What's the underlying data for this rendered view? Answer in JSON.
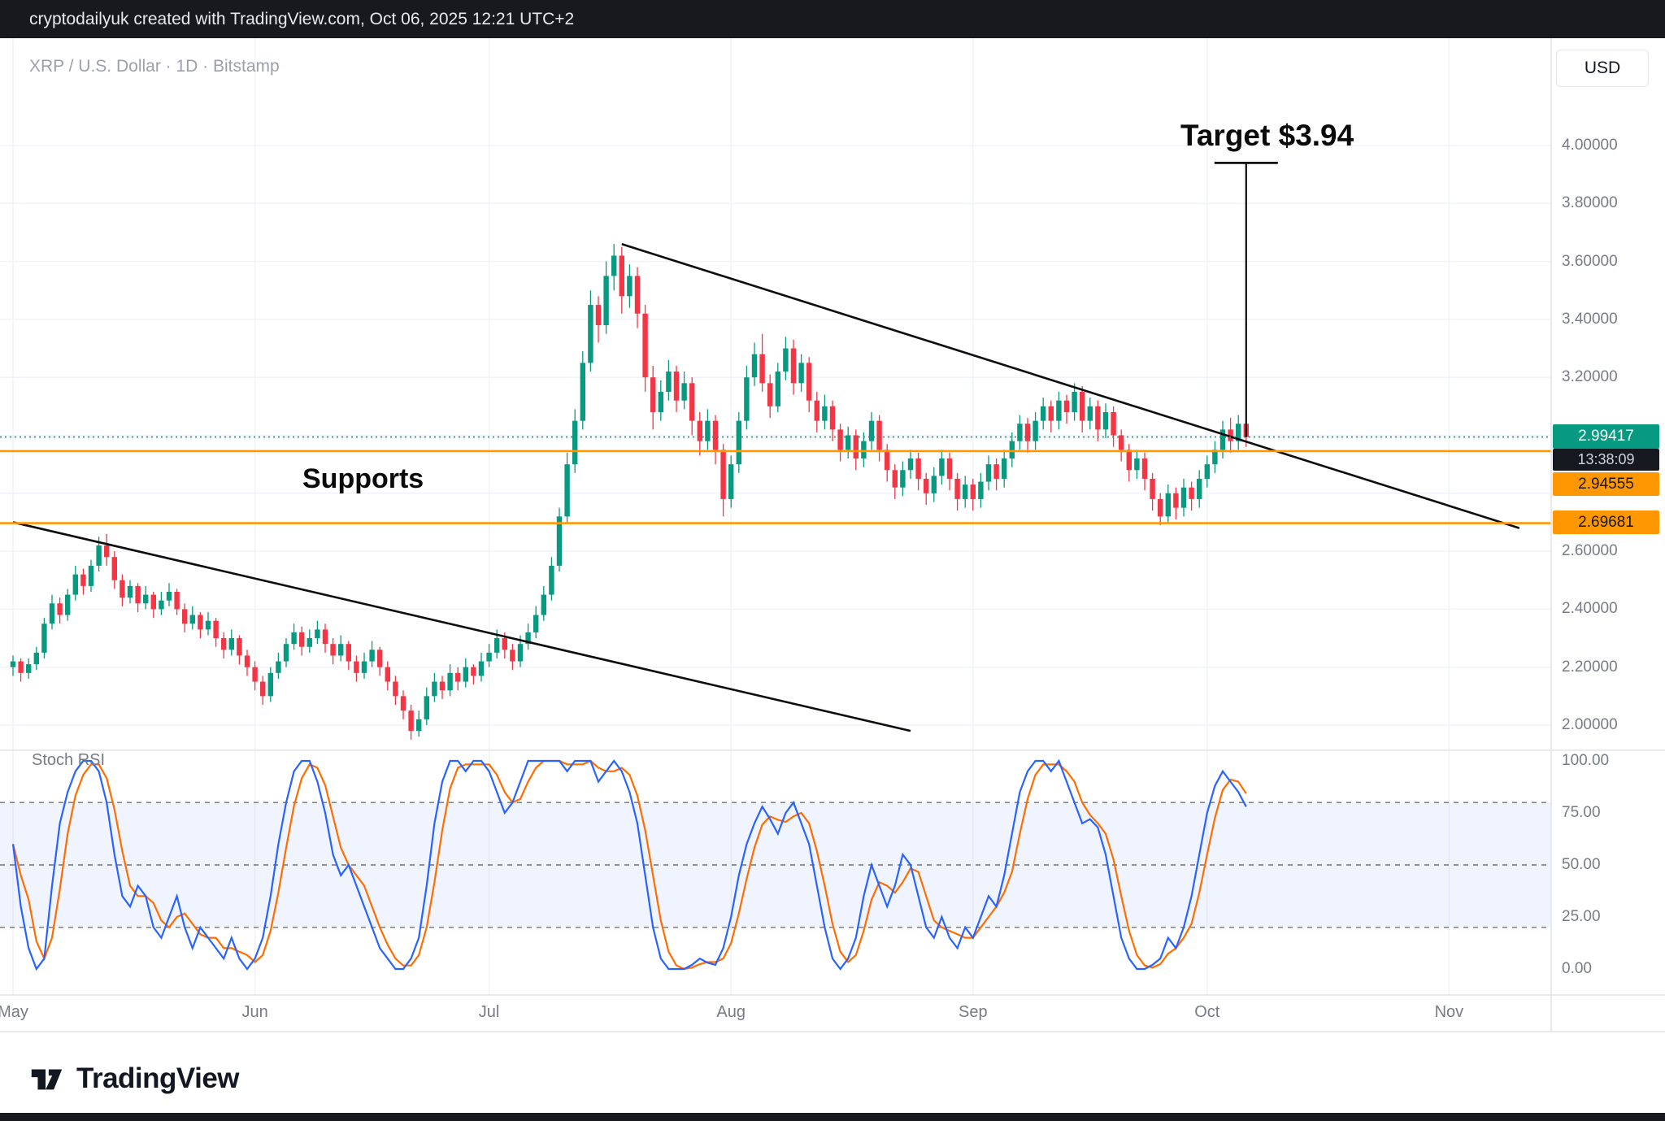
{
  "top_bar": {
    "attribution": "cryptodailyuk created with TradingView.com, Oct 06, 2025 12:21 UTC+2"
  },
  "header": {
    "symbol": "XRP / U.S. Dollar · 1D · Bitstamp",
    "currency": "USD"
  },
  "annotations": {
    "target": "Target $3.94",
    "supports": "Supports"
  },
  "price_axis": {
    "labels": [
      {
        "text": "4.00000",
        "price": 4.0
      },
      {
        "text": "3.80000",
        "price": 3.8
      },
      {
        "text": "3.60000",
        "price": 3.6
      },
      {
        "text": "3.40000",
        "price": 3.4
      },
      {
        "text": "3.20000",
        "price": 3.2
      },
      {
        "text": "2.60000",
        "price": 2.6
      },
      {
        "text": "2.40000",
        "price": 2.4
      },
      {
        "text": "2.20000",
        "price": 2.2
      },
      {
        "text": "2.00000",
        "price": 2.0
      }
    ],
    "current_price": {
      "text": "2.99417",
      "price": 2.99417,
      "countdown": "13:38:09"
    },
    "level_badges": [
      {
        "text": "2.94555",
        "price": 2.94555
      },
      {
        "text": "2.69681",
        "price": 2.69681
      }
    ]
  },
  "time_axis": {
    "labels": [
      {
        "text": "May",
        "day": 0
      },
      {
        "text": "Jun",
        "day": 31
      },
      {
        "text": "Jul",
        "day": 61
      },
      {
        "text": "Aug",
        "day": 92
      },
      {
        "text": "Sep",
        "day": 123
      },
      {
        "text": "Oct",
        "day": 153
      },
      {
        "text": "Nov",
        "day": 184
      }
    ]
  },
  "rsi_panel": {
    "title": "Stoch RSI",
    "labels": [
      {
        "text": "100.00",
        "value": 100
      },
      {
        "text": "75.00",
        "value": 75
      },
      {
        "text": "50.00",
        "value": 50
      },
      {
        "text": "25.00",
        "value": 25
      },
      {
        "text": "0.00",
        "value": 0
      }
    ]
  },
  "footer": {
    "brand": "TradingView"
  },
  "colors": {
    "up": "#089981",
    "down": "#f23645",
    "k": "#2962ff",
    "d": "#ff6d00",
    "support": "#ff9800",
    "current": "#089981",
    "trend": "#0d0d0d",
    "grid": "#f0f3fa",
    "axis_border": "#e0e3eb",
    "axis_text": "#787b86",
    "countdown_bg": "#15181e"
  },
  "chart_data": {
    "type": "candlestick",
    "symbol": "XRP/USD",
    "timeframe": "1D",
    "exchange": "Bitstamp",
    "price_ylim": [
      2.0,
      4.0
    ],
    "current_price": 2.99417,
    "target_price": 3.94,
    "support_levels": [
      2.94555,
      2.69681
    ],
    "trendlines": [
      {
        "from_day": 78,
        "from_price": 3.66,
        "to_day": 193,
        "to_price": 2.68
      },
      {
        "from_day": 0,
        "from_price": 2.7,
        "to_day": 115,
        "to_price": 1.98
      }
    ],
    "candles_ohlc": [
      [
        2.2,
        2.24,
        2.17,
        2.22
      ],
      [
        2.22,
        2.23,
        2.15,
        2.18
      ],
      [
        2.18,
        2.23,
        2.16,
        2.21
      ],
      [
        2.21,
        2.27,
        2.19,
        2.25
      ],
      [
        2.25,
        2.37,
        2.23,
        2.35
      ],
      [
        2.35,
        2.45,
        2.33,
        2.42
      ],
      [
        2.42,
        2.44,
        2.35,
        2.38
      ],
      [
        2.38,
        2.47,
        2.36,
        2.45
      ],
      [
        2.45,
        2.55,
        2.43,
        2.52
      ],
      [
        2.52,
        2.54,
        2.45,
        2.48
      ],
      [
        2.48,
        2.57,
        2.46,
        2.55
      ],
      [
        2.55,
        2.65,
        2.53,
        2.62
      ],
      [
        2.62,
        2.66,
        2.55,
        2.58
      ],
      [
        2.58,
        2.6,
        2.47,
        2.5
      ],
      [
        2.5,
        2.52,
        2.41,
        2.44
      ],
      [
        2.44,
        2.5,
        2.42,
        2.48
      ],
      [
        2.48,
        2.49,
        2.39,
        2.42
      ],
      [
        2.42,
        2.48,
        2.4,
        2.45
      ],
      [
        2.45,
        2.46,
        2.37,
        2.4
      ],
      [
        2.4,
        2.46,
        2.38,
        2.43
      ],
      [
        2.43,
        2.49,
        2.41,
        2.46
      ],
      [
        2.46,
        2.47,
        2.38,
        2.4
      ],
      [
        2.4,
        2.42,
        2.32,
        2.35
      ],
      [
        2.35,
        2.41,
        2.33,
        2.38
      ],
      [
        2.38,
        2.39,
        2.3,
        2.33
      ],
      [
        2.33,
        2.39,
        2.31,
        2.36
      ],
      [
        2.36,
        2.37,
        2.27,
        2.3
      ],
      [
        2.3,
        2.32,
        2.23,
        2.26
      ],
      [
        2.26,
        2.33,
        2.24,
        2.3
      ],
      [
        2.3,
        2.31,
        2.21,
        2.24
      ],
      [
        2.24,
        2.26,
        2.17,
        2.2
      ],
      [
        2.2,
        2.22,
        2.12,
        2.15
      ],
      [
        2.15,
        2.17,
        2.07,
        2.1
      ],
      [
        2.1,
        2.2,
        2.08,
        2.18
      ],
      [
        2.18,
        2.25,
        2.16,
        2.22
      ],
      [
        2.22,
        2.3,
        2.2,
        2.28
      ],
      [
        2.28,
        2.35,
        2.26,
        2.32
      ],
      [
        2.32,
        2.34,
        2.24,
        2.27
      ],
      [
        2.27,
        2.33,
        2.25,
        2.3
      ],
      [
        2.3,
        2.36,
        2.28,
        2.33
      ],
      [
        2.33,
        2.35,
        2.25,
        2.28
      ],
      [
        2.28,
        2.3,
        2.21,
        2.24
      ],
      [
        2.24,
        2.31,
        2.22,
        2.28
      ],
      [
        2.28,
        2.29,
        2.19,
        2.22
      ],
      [
        2.22,
        2.24,
        2.15,
        2.18
      ],
      [
        2.18,
        2.25,
        2.16,
        2.22
      ],
      [
        2.22,
        2.29,
        2.2,
        2.26
      ],
      [
        2.26,
        2.27,
        2.17,
        2.2
      ],
      [
        2.2,
        2.22,
        2.12,
        2.15
      ],
      [
        2.15,
        2.17,
        2.07,
        2.1
      ],
      [
        2.1,
        2.12,
        2.02,
        2.05
      ],
      [
        2.05,
        2.07,
        1.95,
        1.98
      ],
      [
        1.98,
        2.05,
        1.96,
        2.02
      ],
      [
        2.02,
        2.13,
        2.0,
        2.1
      ],
      [
        2.1,
        2.18,
        2.08,
        2.15
      ],
      [
        2.15,
        2.17,
        2.09,
        2.12
      ],
      [
        2.12,
        2.21,
        2.1,
        2.18
      ],
      [
        2.18,
        2.2,
        2.12,
        2.15
      ],
      [
        2.15,
        2.23,
        2.13,
        2.2
      ],
      [
        2.2,
        2.21,
        2.14,
        2.17
      ],
      [
        2.17,
        2.25,
        2.15,
        2.22
      ],
      [
        2.22,
        2.28,
        2.2,
        2.25
      ],
      [
        2.25,
        2.33,
        2.23,
        2.3
      ],
      [
        2.3,
        2.32,
        2.23,
        2.26
      ],
      [
        2.26,
        2.28,
        2.19,
        2.22
      ],
      [
        2.22,
        2.31,
        2.2,
        2.28
      ],
      [
        2.28,
        2.35,
        2.26,
        2.32
      ],
      [
        2.32,
        2.41,
        2.3,
        2.38
      ],
      [
        2.38,
        2.48,
        2.36,
        2.45
      ],
      [
        2.45,
        2.58,
        2.43,
        2.55
      ],
      [
        2.55,
        2.75,
        2.53,
        2.72
      ],
      [
        2.72,
        2.94,
        2.7,
        2.9
      ],
      [
        2.9,
        3.09,
        2.87,
        3.05
      ],
      [
        3.05,
        3.29,
        3.02,
        3.25
      ],
      [
        3.25,
        3.5,
        3.22,
        3.45
      ],
      [
        3.45,
        3.48,
        3.32,
        3.38
      ],
      [
        3.38,
        3.6,
        3.35,
        3.55
      ],
      [
        3.55,
        3.66,
        3.5,
        3.62
      ],
      [
        3.62,
        3.65,
        3.42,
        3.48
      ],
      [
        3.48,
        3.59,
        3.44,
        3.55
      ],
      [
        3.55,
        3.58,
        3.37,
        3.42
      ],
      [
        3.42,
        3.45,
        3.15,
        3.2
      ],
      [
        3.2,
        3.24,
        3.02,
        3.08
      ],
      [
        3.08,
        3.19,
        3.05,
        3.15
      ],
      [
        3.15,
        3.26,
        3.12,
        3.22
      ],
      [
        3.22,
        3.24,
        3.08,
        3.12
      ],
      [
        3.12,
        3.22,
        3.09,
        3.18
      ],
      [
        3.18,
        3.2,
        3.0,
        3.05
      ],
      [
        3.05,
        3.08,
        2.93,
        2.98
      ],
      [
        2.98,
        3.09,
        2.95,
        3.05
      ],
      [
        3.05,
        3.07,
        2.9,
        2.95
      ],
      [
        2.95,
        2.97,
        2.72,
        2.78
      ],
      [
        2.78,
        2.93,
        2.75,
        2.9
      ],
      [
        2.9,
        3.08,
        2.87,
        3.05
      ],
      [
        3.05,
        3.24,
        3.02,
        3.2
      ],
      [
        3.2,
        3.32,
        3.17,
        3.28
      ],
      [
        3.28,
        3.35,
        3.15,
        3.18
      ],
      [
        3.18,
        3.21,
        3.06,
        3.1
      ],
      [
        3.1,
        3.25,
        3.08,
        3.22
      ],
      [
        3.22,
        3.34,
        3.19,
        3.3
      ],
      [
        3.3,
        3.33,
        3.14,
        3.18
      ],
      [
        3.18,
        3.28,
        3.15,
        3.25
      ],
      [
        3.25,
        3.27,
        3.08,
        3.12
      ],
      [
        3.12,
        3.15,
        3.01,
        3.05
      ],
      [
        3.05,
        3.14,
        3.02,
        3.1
      ],
      [
        3.1,
        3.12,
        2.98,
        3.02
      ],
      [
        3.02,
        3.04,
        2.91,
        2.95
      ],
      [
        2.95,
        3.03,
        2.92,
        3.0
      ],
      [
        3.0,
        3.02,
        2.88,
        2.92
      ],
      [
        2.92,
        3.01,
        2.89,
        2.98
      ],
      [
        2.98,
        3.08,
        2.95,
        3.05
      ],
      [
        3.05,
        3.07,
        2.91,
        2.95
      ],
      [
        2.95,
        2.97,
        2.84,
        2.88
      ],
      [
        2.88,
        2.9,
        2.78,
        2.82
      ],
      [
        2.82,
        2.91,
        2.79,
        2.88
      ],
      [
        2.88,
        2.95,
        2.85,
        2.92
      ],
      [
        2.92,
        2.94,
        2.81,
        2.85
      ],
      [
        2.85,
        2.87,
        2.76,
        2.8
      ],
      [
        2.8,
        2.89,
        2.77,
        2.86
      ],
      [
        2.86,
        2.95,
        2.83,
        2.92
      ],
      [
        2.92,
        2.94,
        2.81,
        2.85
      ],
      [
        2.85,
        2.87,
        2.74,
        2.78
      ],
      [
        2.78,
        2.86,
        2.75,
        2.83
      ],
      [
        2.83,
        2.85,
        2.74,
        2.78
      ],
      [
        2.78,
        2.87,
        2.75,
        2.84
      ],
      [
        2.84,
        2.93,
        2.81,
        2.9
      ],
      [
        2.9,
        2.92,
        2.81,
        2.85
      ],
      [
        2.85,
        2.95,
        2.82,
        2.92
      ],
      [
        2.92,
        3.01,
        2.89,
        2.98
      ],
      [
        2.98,
        3.07,
        2.95,
        3.04
      ],
      [
        3.04,
        3.06,
        2.94,
        2.98
      ],
      [
        2.98,
        3.08,
        2.95,
        3.05
      ],
      [
        3.05,
        3.13,
        3.02,
        3.1
      ],
      [
        3.1,
        3.12,
        3.01,
        3.05
      ],
      [
        3.05,
        3.15,
        3.02,
        3.12
      ],
      [
        3.12,
        3.14,
        3.04,
        3.08
      ],
      [
        3.08,
        3.18,
        3.05,
        3.15
      ],
      [
        3.15,
        3.17,
        3.01,
        3.05
      ],
      [
        3.05,
        3.13,
        3.02,
        3.1
      ],
      [
        3.1,
        3.12,
        2.98,
        3.02
      ],
      [
        3.02,
        3.11,
        2.99,
        3.08
      ],
      [
        3.08,
        3.1,
        2.96,
        3.0
      ],
      [
        3.0,
        3.02,
        2.91,
        2.95
      ],
      [
        2.95,
        2.97,
        2.84,
        2.88
      ],
      [
        2.88,
        2.95,
        2.85,
        2.92
      ],
      [
        2.92,
        2.94,
        2.81,
        2.85
      ],
      [
        2.85,
        2.87,
        2.74,
        2.78
      ],
      [
        2.78,
        2.8,
        2.69,
        2.72
      ],
      [
        2.72,
        2.83,
        2.7,
        2.8
      ],
      [
        2.8,
        2.82,
        2.71,
        2.75
      ],
      [
        2.75,
        2.85,
        2.72,
        2.82
      ],
      [
        2.82,
        2.84,
        2.74,
        2.78
      ],
      [
        2.78,
        2.88,
        2.75,
        2.85
      ],
      [
        2.85,
        2.93,
        2.82,
        2.9
      ],
      [
        2.9,
        2.98,
        2.87,
        2.95
      ],
      [
        2.95,
        3.05,
        2.92,
        3.02
      ],
      [
        3.02,
        3.06,
        2.94,
        2.98
      ],
      [
        2.98,
        3.07,
        2.95,
        3.04
      ],
      [
        3.04,
        3.06,
        2.96,
        2.994
      ]
    ],
    "stoch_rsi": {
      "range": [
        0,
        100
      ],
      "bands": [
        80,
        50,
        20
      ],
      "band_fill": [
        20,
        80
      ],
      "k": [
        60,
        30,
        10,
        0,
        5,
        40,
        70,
        85,
        95,
        100,
        100,
        95,
        80,
        55,
        35,
        30,
        40,
        35,
        20,
        15,
        25,
        35,
        20,
        10,
        20,
        15,
        10,
        5,
        15,
        5,
        0,
        5,
        15,
        35,
        60,
        80,
        95,
        100,
        100,
        90,
        75,
        55,
        45,
        50,
        40,
        30,
        20,
        10,
        5,
        0,
        0,
        5,
        15,
        40,
        70,
        90,
        100,
        100,
        95,
        100,
        100,
        95,
        85,
        75,
        80,
        90,
        100,
        100,
        100,
        100,
        100,
        95,
        100,
        100,
        100,
        90,
        95,
        100,
        95,
        85,
        70,
        45,
        20,
        5,
        0,
        0,
        0,
        2,
        5,
        3,
        2,
        10,
        25,
        45,
        60,
        70,
        78,
        72,
        65,
        75,
        80,
        70,
        60,
        40,
        20,
        5,
        0,
        5,
        15,
        35,
        50,
        40,
        30,
        40,
        55,
        50,
        35,
        20,
        15,
        25,
        15,
        10,
        20,
        15,
        25,
        35,
        30,
        45,
        65,
        85,
        95,
        100,
        100,
        95,
        100,
        90,
        80,
        70,
        72,
        68,
        55,
        35,
        15,
        5,
        0,
        0,
        2,
        5,
        15,
        10,
        20,
        35,
        55,
        75,
        88,
        95,
        90,
        85,
        78
      ],
      "d_is_sma3_of_k": true
    }
  }
}
